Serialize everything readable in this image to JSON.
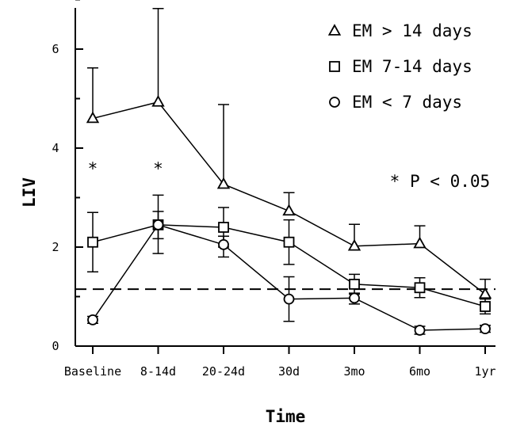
{
  "chart_data": {
    "type": "line",
    "title": "",
    "xlabel": "Time",
    "ylabel": "LIV",
    "categories": [
      "Baseline",
      "8-14d",
      "20-24d",
      "30d",
      "3mo",
      "6mo",
      "1yr"
    ],
    "ylim": [
      0,
      7.2
    ],
    "yticks": [
      "0",
      "2",
      "4",
      "6"
    ],
    "grid": false,
    "legend_position": "top-right",
    "reference_line": {
      "y": 1.15,
      "style": "dashed"
    },
    "series": [
      {
        "name": "EM > 14 days",
        "marker": "triangle",
        "values": [
          4.6,
          4.93,
          3.27,
          2.73,
          2.02,
          2.07,
          1.05
        ],
        "error_upper": [
          5.62,
          6.82,
          4.88,
          3.1,
          2.46,
          2.43,
          1.35
        ],
        "error_lower": [
          4.6,
          4.93,
          3.27,
          2.73,
          2.02,
          2.07,
          1.05
        ]
      },
      {
        "name": "EM 7-14 days",
        "marker": "square",
        "values": [
          2.1,
          2.45,
          2.4,
          2.1,
          1.25,
          1.18,
          0.8
        ],
        "error_upper": [
          2.7,
          3.05,
          2.8,
          2.55,
          1.45,
          1.38,
          0.95
        ],
        "error_lower": [
          1.5,
          1.87,
          2.0,
          1.65,
          1.05,
          0.98,
          0.65
        ]
      },
      {
        "name": "EM < 7 days",
        "marker": "circle",
        "values": [
          0.53,
          2.45,
          2.05,
          0.95,
          0.97,
          0.32,
          0.35
        ],
        "error_upper": [
          0.6,
          2.72,
          2.22,
          1.4,
          1.07,
          0.4,
          0.42
        ],
        "error_lower": [
          0.46,
          2.17,
          1.8,
          0.5,
          0.85,
          0.24,
          0.28
        ]
      }
    ],
    "significance": {
      "marker": "*",
      "categories": [
        "Baseline",
        "8-14d"
      ],
      "y": 3.7,
      "legend_text": "P < 0.05"
    }
  }
}
